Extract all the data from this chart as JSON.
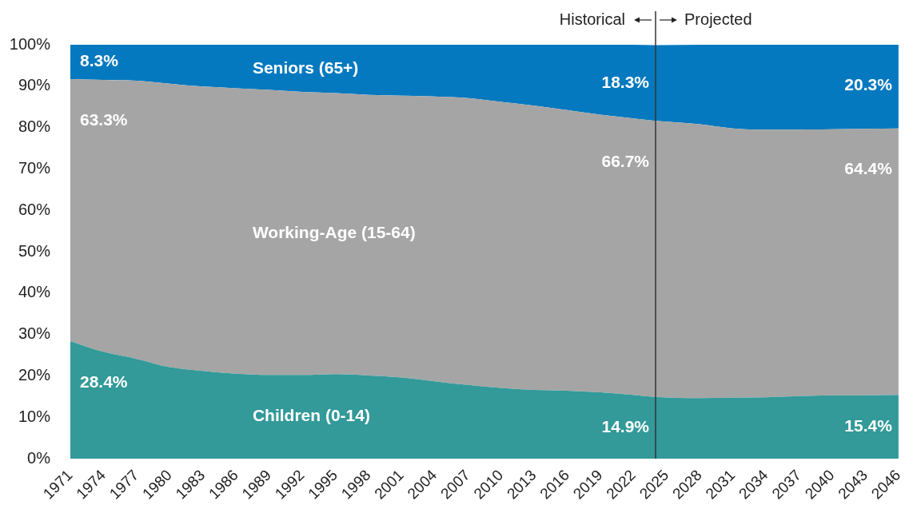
{
  "chart_data": {
    "type": "area",
    "stacked": true,
    "x": [
      1971,
      1974,
      1977,
      1980,
      1983,
      1986,
      1989,
      1992,
      1995,
      1998,
      2001,
      2004,
      2007,
      2010,
      2013,
      2016,
      2019,
      2022,
      2024,
      2028,
      2031,
      2034,
      2037,
      2040,
      2043,
      2046
    ],
    "xlim": [
      1971,
      2046
    ],
    "xticks": [
      1971,
      1974,
      1977,
      1980,
      1983,
      1986,
      1989,
      1992,
      1995,
      1998,
      2001,
      2004,
      2007,
      2010,
      2013,
      2016,
      2019,
      2022,
      2025,
      2028,
      2031,
      2034,
      2037,
      2040,
      2043,
      2046
    ],
    "ylim": [
      0,
      100
    ],
    "yticks": [
      {
        "value": 0,
        "label": "0%"
      },
      {
        "value": 10,
        "label": "10%"
      },
      {
        "value": 20,
        "label": "20%"
      },
      {
        "value": 30,
        "label": "30%"
      },
      {
        "value": 40,
        "label": "40%"
      },
      {
        "value": 50,
        "label": "50%"
      },
      {
        "value": 60,
        "label": "60%"
      },
      {
        "value": 70,
        "label": "70%"
      },
      {
        "value": 80,
        "label": "80%"
      },
      {
        "value": 90,
        "label": "90%"
      },
      {
        "value": 100,
        "label": "100%"
      }
    ],
    "series": [
      {
        "name": "Children (0-14)",
        "color": "#339999",
        "values": [
          28.4,
          25.8,
          24.1,
          22.1,
          21.2,
          20.5,
          20.2,
          20.2,
          20.4,
          20.1,
          19.6,
          18.7,
          17.8,
          17.1,
          16.6,
          16.4,
          16.0,
          15.4,
          14.9,
          14.6,
          14.7,
          14.8,
          15.1,
          15.3,
          15.3,
          15.4
        ],
        "value_labels": [
          "28.4%",
          null,
          null,
          null,
          null,
          null,
          null,
          null,
          null,
          null,
          null,
          null,
          null,
          null,
          null,
          null,
          null,
          null,
          "14.9%",
          null,
          null,
          null,
          null,
          null,
          null,
          "15.4%"
        ]
      },
      {
        "name": "Working-Age (15-64)",
        "color": "#a5a5a5",
        "values": [
          63.3,
          65.7,
          67.2,
          68.5,
          68.7,
          69.0,
          68.9,
          68.4,
          67.9,
          67.8,
          68.1,
          68.8,
          69.3,
          69.1,
          68.7,
          67.8,
          67.1,
          66.8,
          66.7,
          66.2,
          65.1,
          64.7,
          64.4,
          64.3,
          64.4,
          64.4
        ],
        "value_labels": [
          "63.3%",
          null,
          null,
          null,
          null,
          null,
          null,
          null,
          null,
          null,
          null,
          null,
          null,
          null,
          null,
          null,
          null,
          null,
          "66.7%",
          null,
          null,
          null,
          null,
          null,
          null,
          "64.4%"
        ]
      },
      {
        "name": "Seniors (65+)",
        "color": "#0579bf",
        "values": [
          8.3,
          8.5,
          8.7,
          9.4,
          10.1,
          10.5,
          10.9,
          11.4,
          11.7,
          12.1,
          12.3,
          12.5,
          12.9,
          13.8,
          14.7,
          15.8,
          16.9,
          17.8,
          18.3,
          19.2,
          20.2,
          20.5,
          20.5,
          20.4,
          20.3,
          20.3
        ],
        "value_labels": [
          "8.3%",
          null,
          null,
          null,
          null,
          null,
          null,
          null,
          null,
          null,
          null,
          null,
          null,
          null,
          null,
          null,
          null,
          null,
          "18.3%",
          null,
          null,
          null,
          null,
          null,
          null,
          "20.3%"
        ]
      }
    ],
    "ref_lines": [
      {
        "axis": "x",
        "value": 2024,
        "color": "#333333"
      }
    ],
    "annotations": [
      {
        "text": "Historical",
        "x": 2024
      },
      {
        "text": "Projected",
        "x": 2024
      }
    ]
  }
}
